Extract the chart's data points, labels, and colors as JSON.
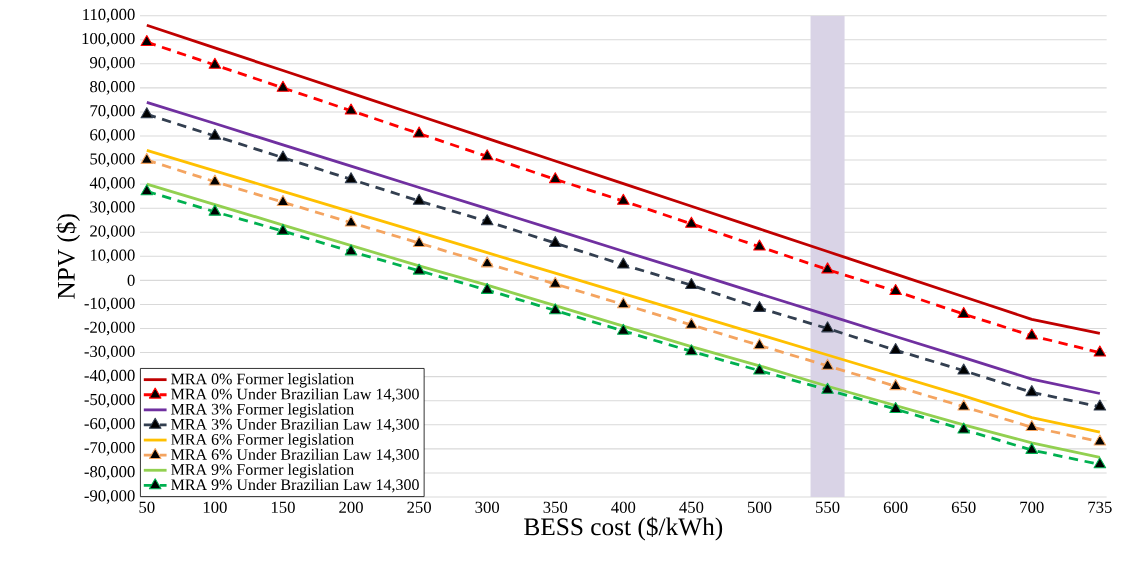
{
  "chart_data": {
    "type": "line",
    "xlabel": "BESS cost ($/kWh)",
    "ylabel": "NPV ($)",
    "categories": [
      "50",
      "100",
      "150",
      "200",
      "250",
      "300",
      "350",
      "400",
      "450",
      "500",
      "550",
      "600",
      "650",
      "700",
      "735"
    ],
    "series": [
      {
        "name": "MRA 0% Former legislation",
        "color": "#c00000",
        "line_style": "solid",
        "marker": "none",
        "values": [
          106000,
          96600,
          87200,
          77800,
          68400,
          59000,
          49600,
          40200,
          30800,
          21400,
          12000,
          2600,
          -6800,
          -16200,
          -22000
        ]
      },
      {
        "name": "MRA 0% Under Brazilian Law 14,300",
        "color": "#ff0000",
        "line_style": "dashed",
        "marker": "triangle",
        "values": [
          99000,
          89500,
          80000,
          70500,
          61000,
          51500,
          42000,
          33000,
          23500,
          14000,
          4500,
          -4500,
          -14000,
          -23000,
          -30000
        ]
      },
      {
        "name": "MRA 3% Former legislation",
        "color": "#7030a0",
        "line_style": "solid",
        "marker": "none",
        "values": [
          74000,
          65200,
          56300,
          47500,
          38600,
          29800,
          21000,
          12100,
          3300,
          -5600,
          -14400,
          -23300,
          -32100,
          -41000,
          -47000
        ]
      },
      {
        "name": "MRA 3% Under Brazilian Law 14,300",
        "color": "#333f50",
        "line_style": "dashed",
        "marker": "triangle",
        "values": [
          69000,
          60000,
          51000,
          42000,
          33000,
          24500,
          15500,
          6500,
          -2000,
          -11500,
          -20000,
          -29000,
          -37500,
          -46500,
          -52500
        ]
      },
      {
        "name": "MRA 6% Former legislation",
        "color": "#ffc000",
        "line_style": "solid",
        "marker": "none",
        "values": [
          54000,
          45500,
          37000,
          28500,
          20000,
          11500,
          3000,
          -5500,
          -14000,
          -22500,
          -31000,
          -39500,
          -48000,
          -57000,
          -63000
        ]
      },
      {
        "name": "MRA 6% Under Brazilian Law 14,300",
        "color": "#f4a460",
        "line_style": "dashed",
        "marker": "triangle",
        "values": [
          50000,
          41000,
          32500,
          24000,
          15500,
          7000,
          -1500,
          -10000,
          -18500,
          -27000,
          -35500,
          -44000,
          -52500,
          -61000,
          -67000
        ]
      },
      {
        "name": "MRA 9% Former legislation",
        "color": "#92d050",
        "line_style": "solid",
        "marker": "none",
        "values": [
          40000,
          31500,
          23000,
          14500,
          6000,
          -2000,
          -10500,
          -19000,
          -27500,
          -35500,
          -44000,
          -52000,
          -60000,
          -67500,
          -73500
        ]
      },
      {
        "name": "MRA 9% Under Brazilian Law 14,300",
        "color": "#00b050",
        "line_style": "dashed",
        "marker": "triangle",
        "values": [
          37000,
          28500,
          20500,
          12000,
          4000,
          -4000,
          -12500,
          -21000,
          -29500,
          -37500,
          -45500,
          -53500,
          -62000,
          -70500,
          -76500
        ]
      }
    ],
    "ylim": [
      -90000,
      110000
    ],
    "yticks": [
      {
        "value": -90000,
        "label": "-90,000"
      },
      {
        "value": -80000,
        "label": "-80,000"
      },
      {
        "value": -70000,
        "label": "-70,000"
      },
      {
        "value": -60000,
        "label": "-60,000"
      },
      {
        "value": -50000,
        "label": "-50,000"
      },
      {
        "value": -40000,
        "label": "-40,000"
      },
      {
        "value": -30000,
        "label": "-30,000"
      },
      {
        "value": -20000,
        "label": "-20,000"
      },
      {
        "value": -10000,
        "label": "-10,000"
      },
      {
        "value": 0,
        "label": "0"
      },
      {
        "value": 10000,
        "label": "10,000"
      },
      {
        "value": 20000,
        "label": "20,000"
      },
      {
        "value": 30000,
        "label": "30,000"
      },
      {
        "value": 40000,
        "label": "40,000"
      },
      {
        "value": 50000,
        "label": "50,000"
      },
      {
        "value": 60000,
        "label": "60,000"
      },
      {
        "value": 70000,
        "label": "70,000"
      },
      {
        "value": 80000,
        "label": "80,000"
      },
      {
        "value": 90000,
        "label": "90,000"
      },
      {
        "value": 100000,
        "label": "100,000"
      },
      {
        "value": 110000,
        "label": "110,000"
      }
    ],
    "bands": [
      {
        "axis": "x",
        "from": "550",
        "to": "550",
        "color": "#d9d3e6"
      }
    ],
    "grid": "y",
    "legend": "bottom left"
  }
}
